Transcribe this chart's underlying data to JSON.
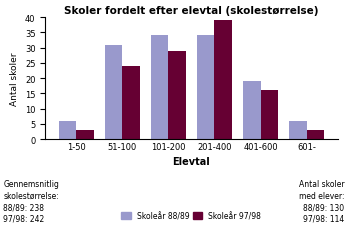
{
  "title": "Skoler fordelt efter elevtal (skolestørrelse)",
  "categories": [
    "1-50",
    "51-100",
    "101-200",
    "201-400",
    "401-600",
    "601-"
  ],
  "series_8889": [
    6,
    31,
    34,
    34,
    19,
    6
  ],
  "series_9798": [
    3,
    24,
    29,
    39,
    16,
    3
  ],
  "color_8889": "#9999cc",
  "color_9798": "#660033",
  "ylabel": "Antal skoler",
  "xlabel": "Elevtal",
  "ylim": [
    0,
    40
  ],
  "yticks": [
    0,
    5,
    10,
    15,
    20,
    25,
    30,
    35,
    40
  ],
  "legend_8889": "Skoleår 88/89",
  "legend_9798": "Skoleår 97/98",
  "bottom_left_text": "Gennemsnitlig\nskolestørrelse:\n88/89: 238\n97/98: 242",
  "bottom_right_text": "Antal skoler\nmed elever:\n88/89: 130\n97/98: 114"
}
